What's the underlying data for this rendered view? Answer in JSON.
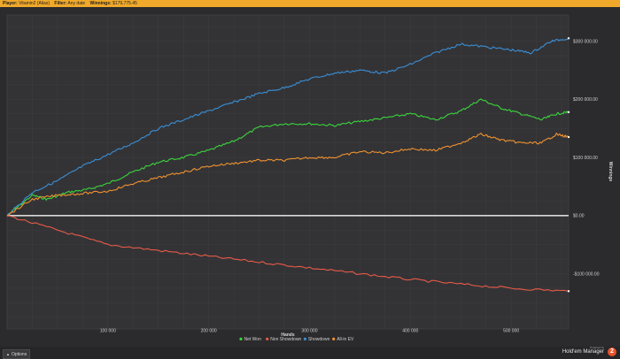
{
  "header": {
    "player_label": "Player:",
    "player_value": "Vitamin2 (Alias)",
    "filter_label": "Filter:",
    "filter_value": "Any date",
    "winnings_label": "Winnings:",
    "winnings_value": "$179,775.45"
  },
  "footer": {
    "options_label": "Options",
    "brand_powered": "Powered by",
    "brand_name": "Hold'em Manager",
    "brand_badge": "2"
  },
  "chart_data": {
    "type": "line",
    "xlabel": "Hands",
    "ylabel": "Winnings",
    "xlim": [
      0,
      557000
    ],
    "ylim": [
      -195000,
      345000
    ],
    "x_ticks": [
      100000,
      200000,
      300000,
      400000,
      500000
    ],
    "x_tick_labels": [
      "100 000",
      "200 000",
      "300 000",
      "400 000",
      "500 000"
    ],
    "y_ticks": [
      300000,
      200000,
      100000,
      0,
      -100000
    ],
    "y_tick_labels": [
      "$300 000.00",
      "$200 000.00",
      "$100 000.00",
      "$0.00",
      "-$100 000.00"
    ],
    "grid": true,
    "legend_position": "bottom",
    "zero_line_color": "#d8d8d8",
    "series": [
      {
        "name": "Net Won",
        "color": "#3bd63b",
        "x": [
          0,
          25000,
          40000,
          60000,
          80000,
          100000,
          125000,
          150000,
          175000,
          200000,
          225000,
          250000,
          275000,
          300000,
          325000,
          350000,
          375000,
          400000,
          425000,
          450000,
          470000,
          490000,
          510000,
          530000,
          545000,
          557000
        ],
        "y": [
          0,
          35000,
          28000,
          40000,
          45000,
          55000,
          75000,
          92000,
          100000,
          112000,
          128000,
          152000,
          158000,
          158000,
          155000,
          162000,
          168000,
          175000,
          165000,
          180000,
          200000,
          185000,
          175000,
          165000,
          175000,
          178000
        ]
      },
      {
        "name": "Non Showdown",
        "color": "#e85a46",
        "x": [
          0,
          50000,
          100000,
          150000,
          200000,
          250000,
          300000,
          350000,
          400000,
          450000,
          500000,
          557000
        ],
        "y": [
          0,
          -25000,
          -50000,
          -60000,
          -70000,
          -80000,
          -90000,
          -100000,
          -110000,
          -118000,
          -125000,
          -130000
        ]
      },
      {
        "name": "Showdown",
        "color": "#3a8fd6",
        "x": [
          0,
          25000,
          50000,
          75000,
          100000,
          125000,
          150000,
          175000,
          200000,
          225000,
          250000,
          275000,
          300000,
          325000,
          350000,
          375000,
          400000,
          425000,
          450000,
          475000,
          500000,
          520000,
          540000,
          557000
        ],
        "y": [
          0,
          40000,
          60000,
          85000,
          105000,
          125000,
          150000,
          165000,
          180000,
          195000,
          210000,
          220000,
          235000,
          245000,
          250000,
          245000,
          260000,
          280000,
          295000,
          290000,
          285000,
          280000,
          300000,
          305000
        ]
      },
      {
        "name": "All-in EV",
        "color": "#f0922e",
        "x": [
          0,
          25000,
          50000,
          75000,
          100000,
          125000,
          150000,
          175000,
          200000,
          225000,
          250000,
          275000,
          300000,
          325000,
          350000,
          375000,
          400000,
          425000,
          450000,
          470000,
          490000,
          510000,
          530000,
          545000,
          557000
        ],
        "y": [
          0,
          28000,
          35000,
          38000,
          42000,
          55000,
          65000,
          75000,
          85000,
          90000,
          95000,
          95000,
          100000,
          100000,
          110000,
          108000,
          115000,
          112000,
          125000,
          140000,
          130000,
          125000,
          125000,
          140000,
          135000
        ]
      }
    ]
  }
}
